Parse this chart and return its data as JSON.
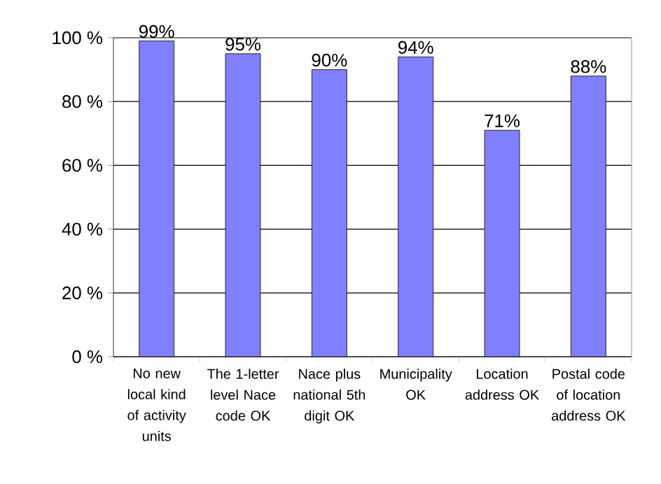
{
  "chart_data": {
    "type": "bar",
    "categories": [
      "No new local kind of activity units",
      "The 1-letter level Nace code OK",
      "Nace plus national 5th digit OK",
      "Municipality OK",
      "Location address OK",
      "Postal code of location address OK"
    ],
    "values": [
      99,
      95,
      90,
      94,
      71,
      88
    ],
    "value_labels": [
      "99%",
      "95%",
      "90%",
      "94%",
      "71%",
      "88%"
    ],
    "color": "#8080ff",
    "ylim": [
      0,
      100
    ],
    "yticks": [
      {
        "value": 0,
        "label": "0 %"
      },
      {
        "value": 20,
        "label": "20 %"
      },
      {
        "value": 40,
        "label": "40 %"
      },
      {
        "value": 60,
        "label": "60 %"
      },
      {
        "value": 80,
        "label": "80 %"
      },
      {
        "value": 100,
        "label": "100 %"
      }
    ],
    "grid": "y"
  }
}
